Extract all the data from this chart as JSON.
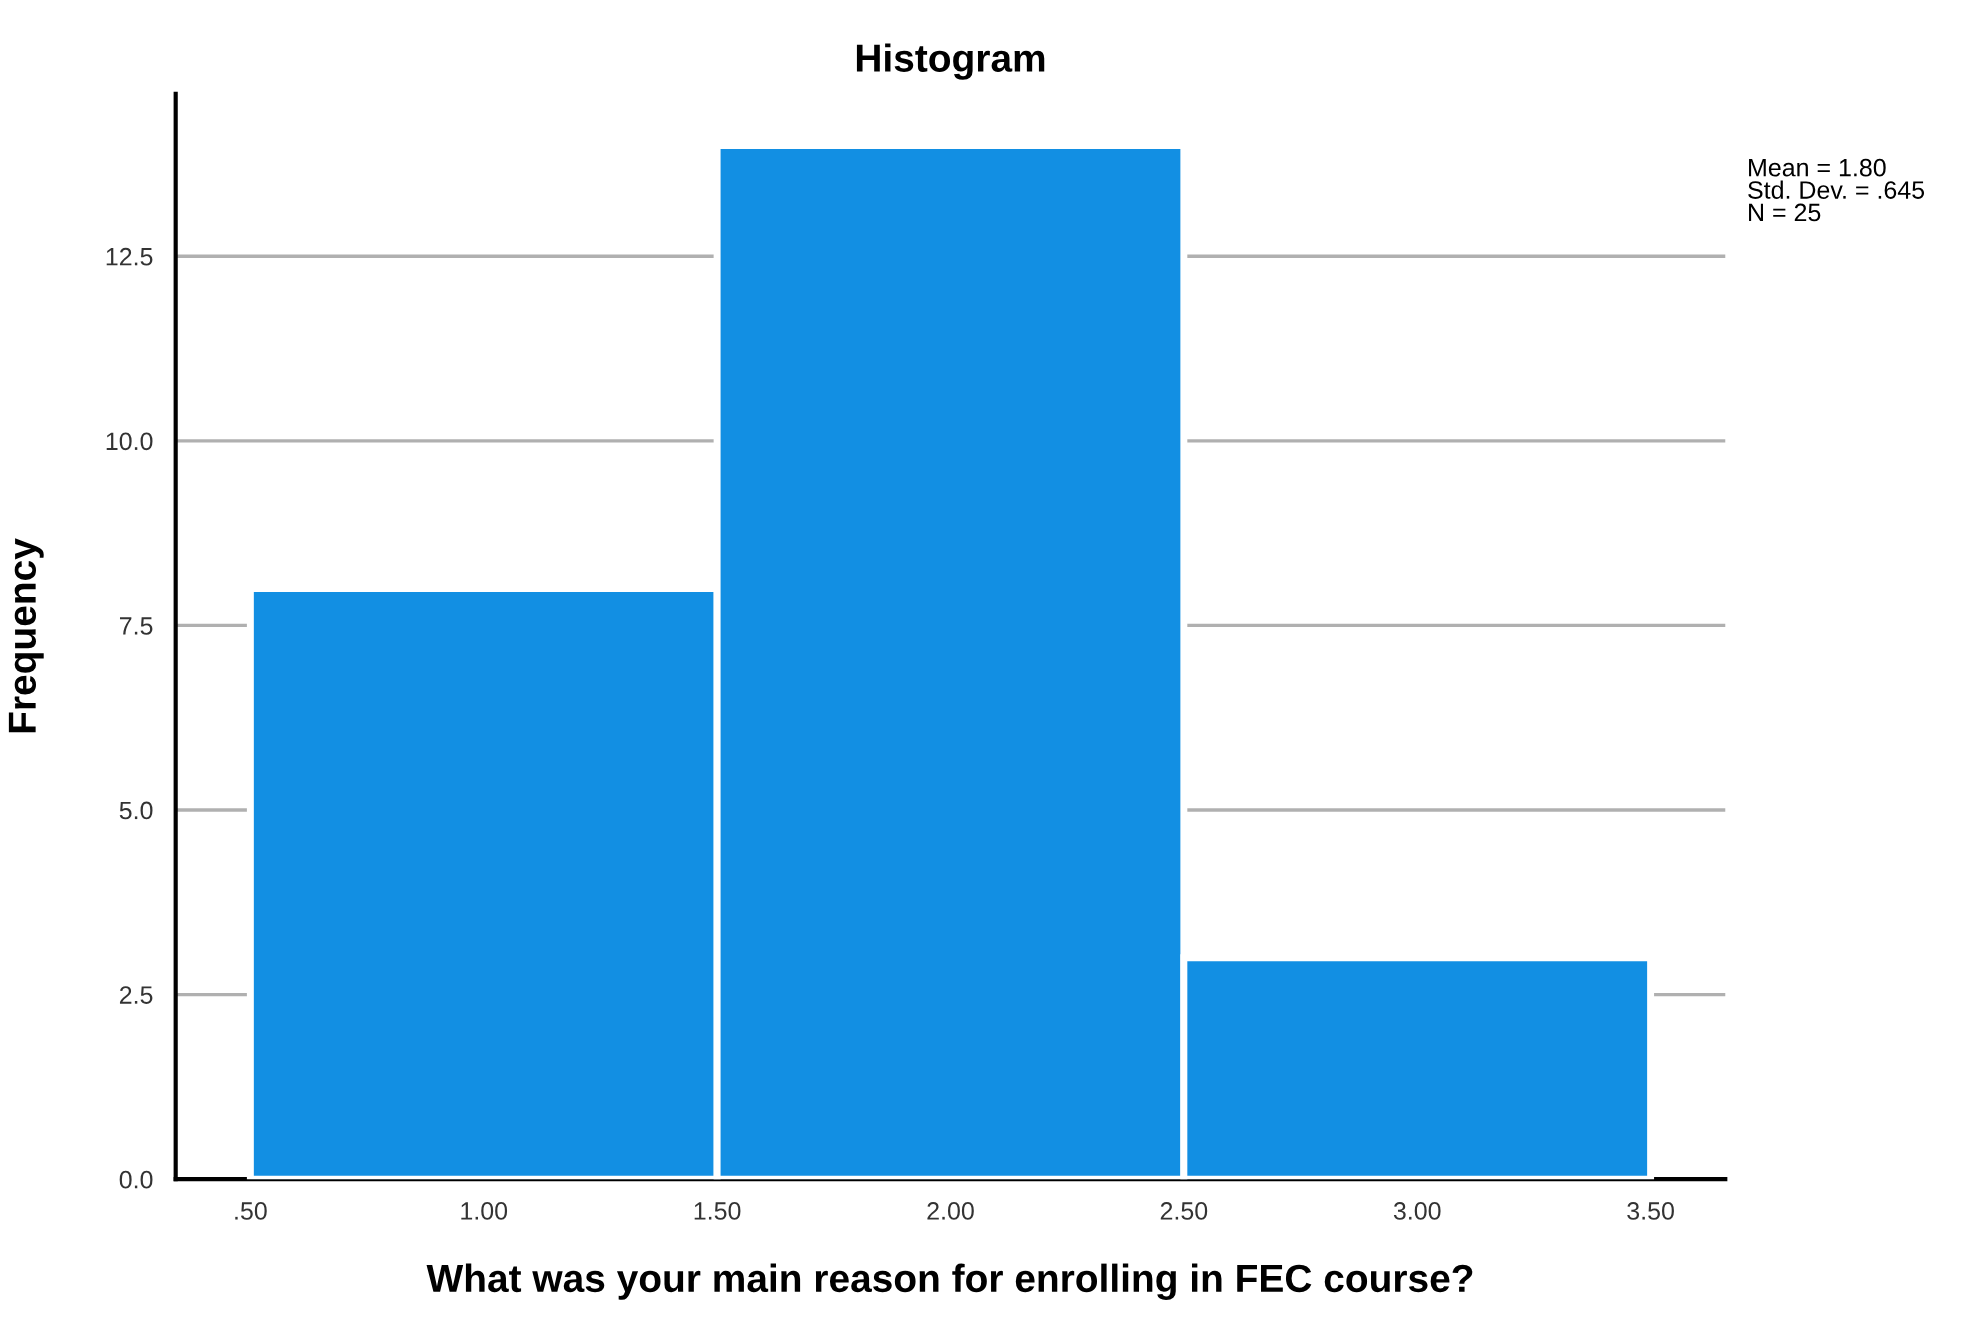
{
  "chart_data": {
    "type": "histogram",
    "title": "Histogram",
    "xlabel": "What was your main reason for enrolling in FEC course?",
    "ylabel": "Frequency",
    "bins": [
      0.5,
      1.5,
      2.5,
      3.5
    ],
    "values": [
      8,
      14,
      3
    ],
    "color": "#128fe3",
    "xlim": [
      0.34,
      3.66
    ],
    "ylim": [
      0,
      14.7
    ],
    "xticks": [
      {
        "value": 0.5,
        "label": ".50"
      },
      {
        "value": 1.0,
        "label": "1.00"
      },
      {
        "value": 1.5,
        "label": "1.50"
      },
      {
        "value": 2.0,
        "label": "2.00"
      },
      {
        "value": 2.5,
        "label": "2.50"
      },
      {
        "value": 3.0,
        "label": "3.00"
      },
      {
        "value": 3.5,
        "label": "3.50"
      }
    ],
    "yticks": [
      {
        "value": 0,
        "label": "0.0"
      },
      {
        "value": 2.5,
        "label": "2.5"
      },
      {
        "value": 5,
        "label": "5.0"
      },
      {
        "value": 7.5,
        "label": "7.5"
      },
      {
        "value": 10,
        "label": "10.0"
      },
      {
        "value": 12.5,
        "label": "12.5"
      }
    ],
    "grid": "y",
    "annotations": [
      "Mean = 1.80\nStd. Dev. = .645\nN = 25"
    ]
  }
}
